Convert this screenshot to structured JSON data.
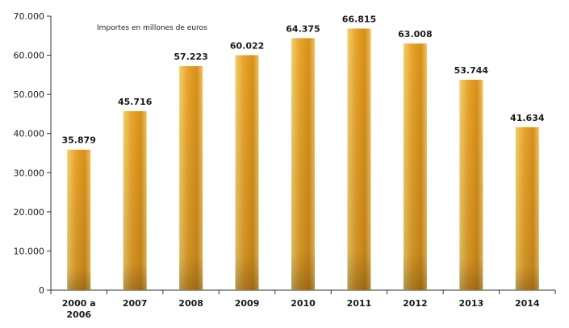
{
  "chart_data": {
    "type": "bar",
    "subtitle": "Importes en millones de euros",
    "categories": [
      "2000 a\n2006",
      "2007",
      "2008",
      "2009",
      "2010",
      "2011",
      "2012",
      "2013",
      "2014"
    ],
    "values": [
      35879,
      45716,
      57223,
      60022,
      64375,
      66815,
      63008,
      53744,
      41634
    ],
    "value_labels": [
      "35.879",
      "45.716",
      "57.223",
      "60.022",
      "64.375",
      "66.815",
      "63.008",
      "53.744",
      "41.634"
    ],
    "y_ticks": [
      0,
      10000,
      20000,
      30000,
      40000,
      50000,
      60000,
      70000
    ],
    "y_tick_labels": [
      "0",
      "10.000",
      "20.000",
      "30.000",
      "40.000",
      "50.000",
      "60.000",
      "70.000"
    ],
    "ylim": [
      0,
      70000
    ],
    "grid": false,
    "bar_color": "#e8a52a"
  }
}
